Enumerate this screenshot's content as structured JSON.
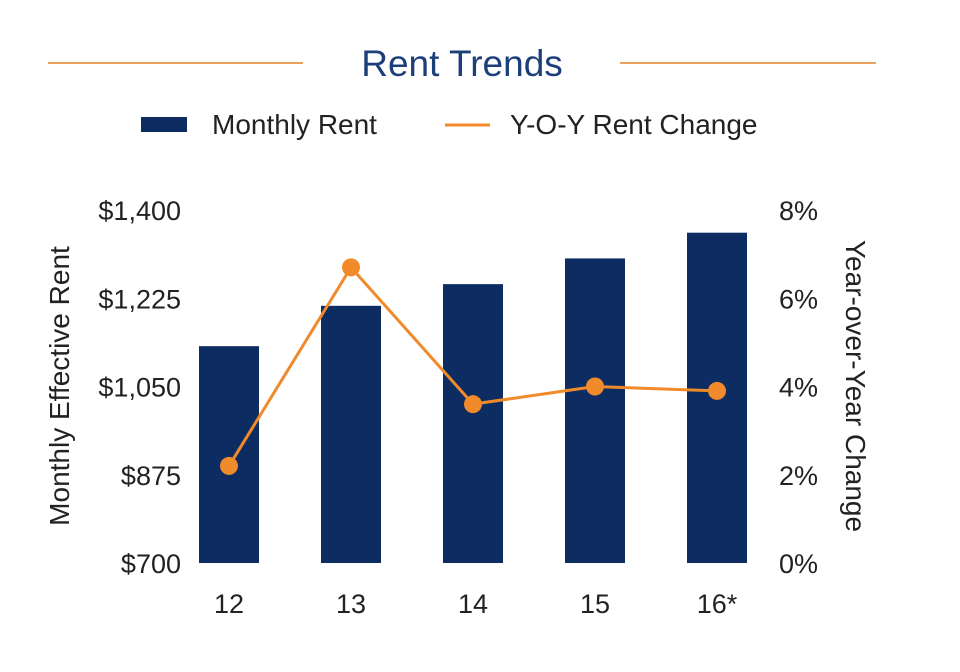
{
  "colors": {
    "bar": "#0d2d62",
    "line": "#f08a2a",
    "rule": "#e6a15a",
    "text": "#222222",
    "title": "#1c3f7a",
    "background": "#ffffff"
  },
  "chart_data": {
    "type": "bar",
    "title": "Rent Trends",
    "categories": [
      "12",
      "13",
      "14",
      "15",
      "16*"
    ],
    "series": [
      {
        "name": "Monthly Rent",
        "type": "bar",
        "axis": "left",
        "values": [
          1130,
          1210,
          1253,
          1304,
          1355
        ]
      },
      {
        "name": "Y-O-Y Rent Change",
        "type": "line",
        "axis": "right",
        "values": [
          2.2,
          6.7,
          3.6,
          4.0,
          3.9
        ]
      }
    ],
    "y_left": {
      "label": "Monthly Effective Rent",
      "min": 700,
      "max": 1400,
      "ticks": [
        "$700",
        "$875",
        "$1,050",
        "$1,225",
        "$1,400"
      ]
    },
    "y_right": {
      "label": "Year-over-Year Change",
      "min": 0,
      "max": 8,
      "ticks": [
        "0%",
        "2%",
        "4%",
        "6%",
        "8%"
      ]
    },
    "legend": "top-center",
    "grid": false
  }
}
